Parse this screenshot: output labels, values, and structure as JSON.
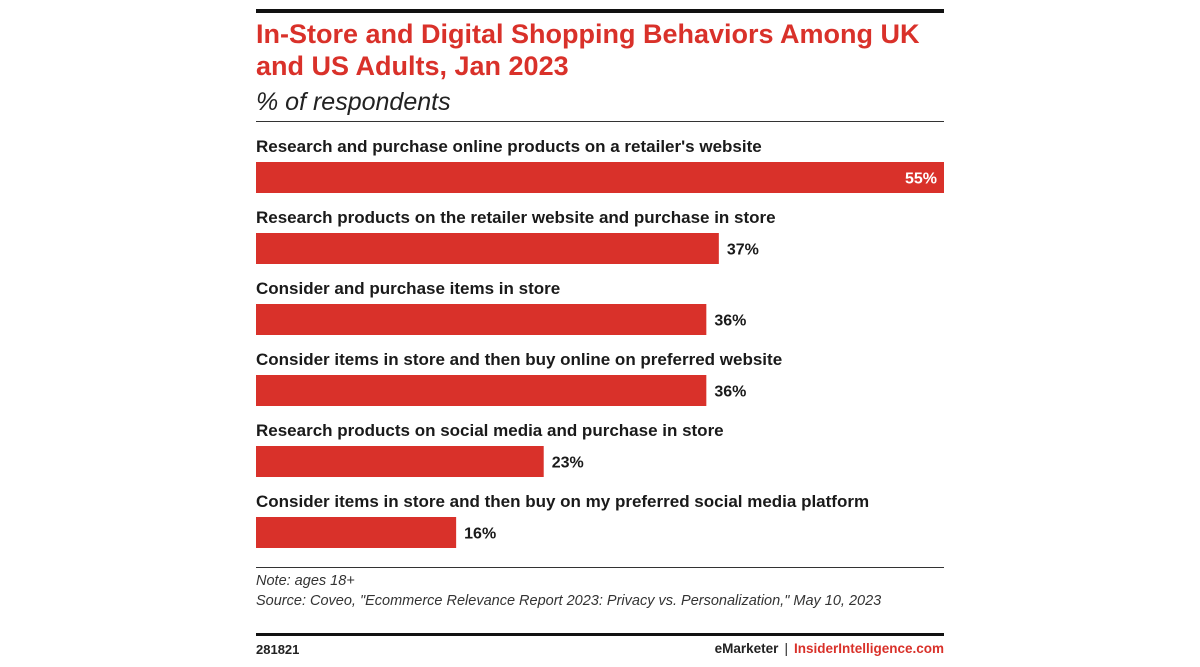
{
  "header": {
    "title": "In-Store and Digital Shopping Behaviors Among UK and US Adults, Jan 2023",
    "subtitle": "% of respondents"
  },
  "chart_data": {
    "type": "bar",
    "orientation": "horizontal",
    "title": "In-Store and Digital Shopping Behaviors Among UK and US Adults, Jan 2023",
    "subtitle": "% of respondents",
    "categories": [
      "Research and purchase online products on a retailer's website",
      "Research products on the retailer website and purchase in store",
      "Consider and purchase items in store",
      "Consider items in store and then buy online on preferred website",
      "Research products on social media and purchase in store",
      "Consider items in store and then buy on my preferred social media platform"
    ],
    "values": [
      55,
      37,
      36,
      36,
      23,
      16
    ],
    "value_labels": [
      "55%",
      "37%",
      "36%",
      "36%",
      "23%",
      "16%"
    ],
    "xlim": [
      0,
      55
    ],
    "bar_color": "#d9312a",
    "grid": false,
    "legend": "none"
  },
  "footer": {
    "note": "Note: ages 18+",
    "source": "Source: Coveo, \"Ecommerce Relevance Report 2023: Privacy vs. Personalization,\" May 10, 2023",
    "chart_id": "281821",
    "brand_left": "eMarketer",
    "brand_sep": "|",
    "brand_right": "InsiderIntelligence.com"
  },
  "colors": {
    "accent": "#d9312a",
    "text": "#1a1a1a"
  }
}
